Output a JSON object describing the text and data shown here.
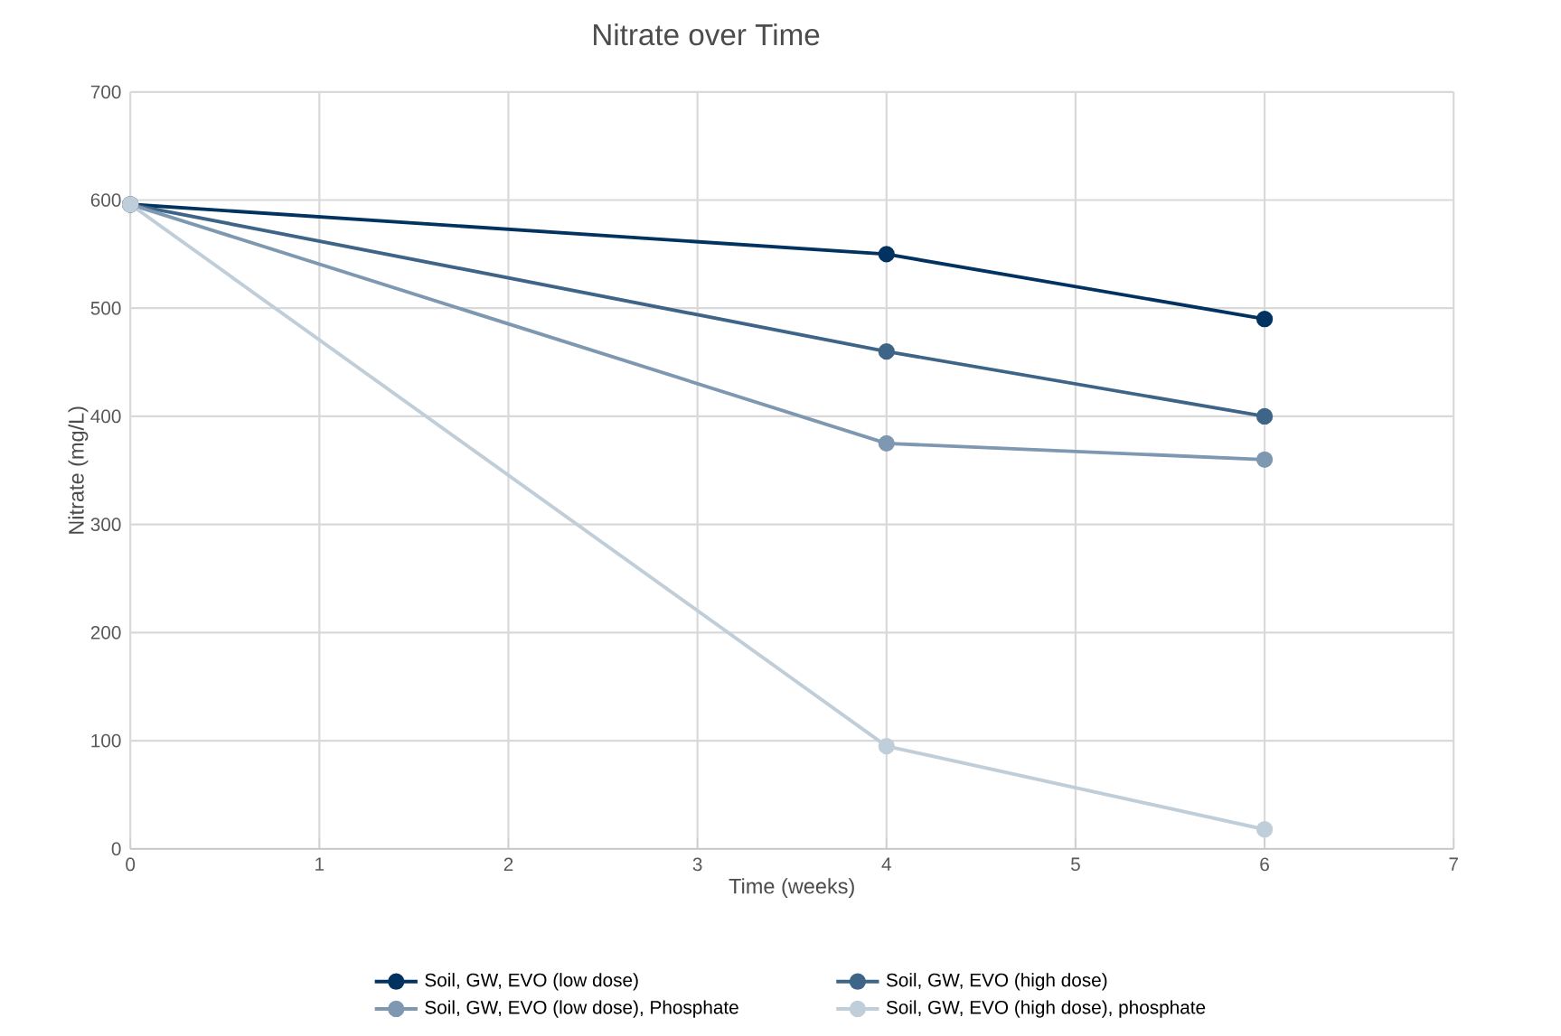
{
  "chart_data": {
    "type": "line",
    "title": "Nitrate over Time",
    "xlabel": "Time (weeks)",
    "ylabel": "Nitrate (mg/L)",
    "xlim": [
      0,
      7
    ],
    "xticks": [
      0,
      1,
      2,
      3,
      4,
      5,
      6,
      7
    ],
    "ylim": [
      0,
      700
    ],
    "yticks": [
      0,
      100,
      200,
      300,
      400,
      500,
      600,
      700
    ],
    "grid": true,
    "legend": "bottom",
    "marker": "circle",
    "line_style": "solid",
    "series": [
      {
        "name": "Soil, GW, EVO  (low dose)",
        "color": "#023360",
        "x": [
          0,
          4,
          6
        ],
        "values": [
          596,
          550,
          490
        ]
      },
      {
        "name": "Soil, GW, EVO  (high dose)",
        "color": "#3e6587",
        "x": [
          0,
          4,
          6
        ],
        "values": [
          596,
          460,
          400
        ]
      },
      {
        "name": "Soil, GW, EVO  (low dose),   Phosphate",
        "color": "#7d98b0",
        "x": [
          0,
          4,
          6
        ],
        "values": [
          596,
          375,
          360
        ]
      },
      {
        "name": "Soil, GW, EVO  (high dose),  phosphate",
        "color": "#c0ced9",
        "x": [
          0,
          4,
          6
        ],
        "values": [
          596,
          95,
          18
        ]
      }
    ]
  }
}
